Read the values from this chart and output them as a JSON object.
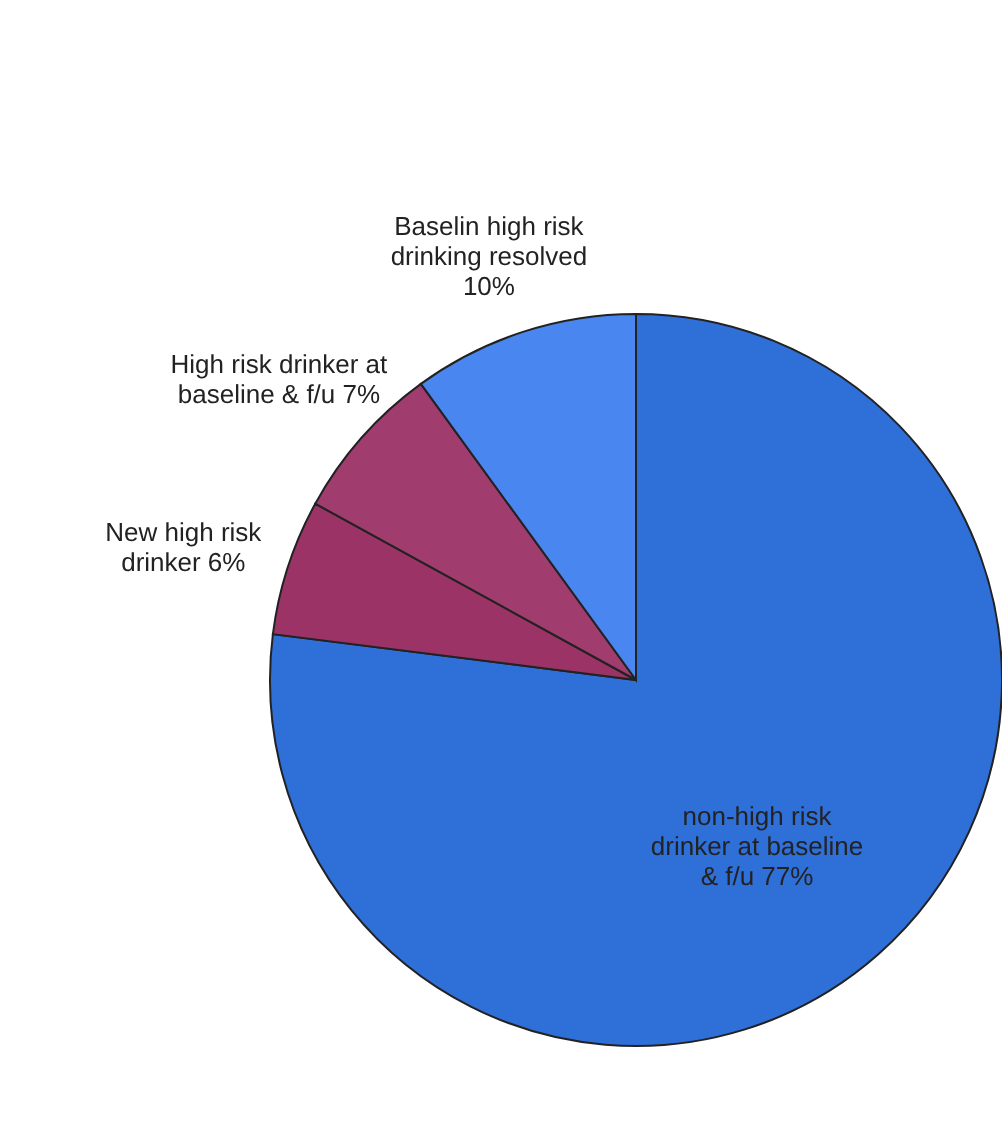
{
  "chart_data": {
    "type": "pie",
    "categories": [
      "non-high risk drinker at baseline & f/u",
      "New high risk drinker",
      "High risk drinker at baseline & f/u",
      "Baselin high risk drinking resolved"
    ],
    "values": [
      77,
      6,
      7,
      10
    ],
    "value_labels": [
      "77%",
      "6%",
      "7%",
      "10%"
    ],
    "colors": [
      "#2f6fd8",
      "#9c3366",
      "#a13d6e",
      "#4a86f0"
    ]
  }
}
